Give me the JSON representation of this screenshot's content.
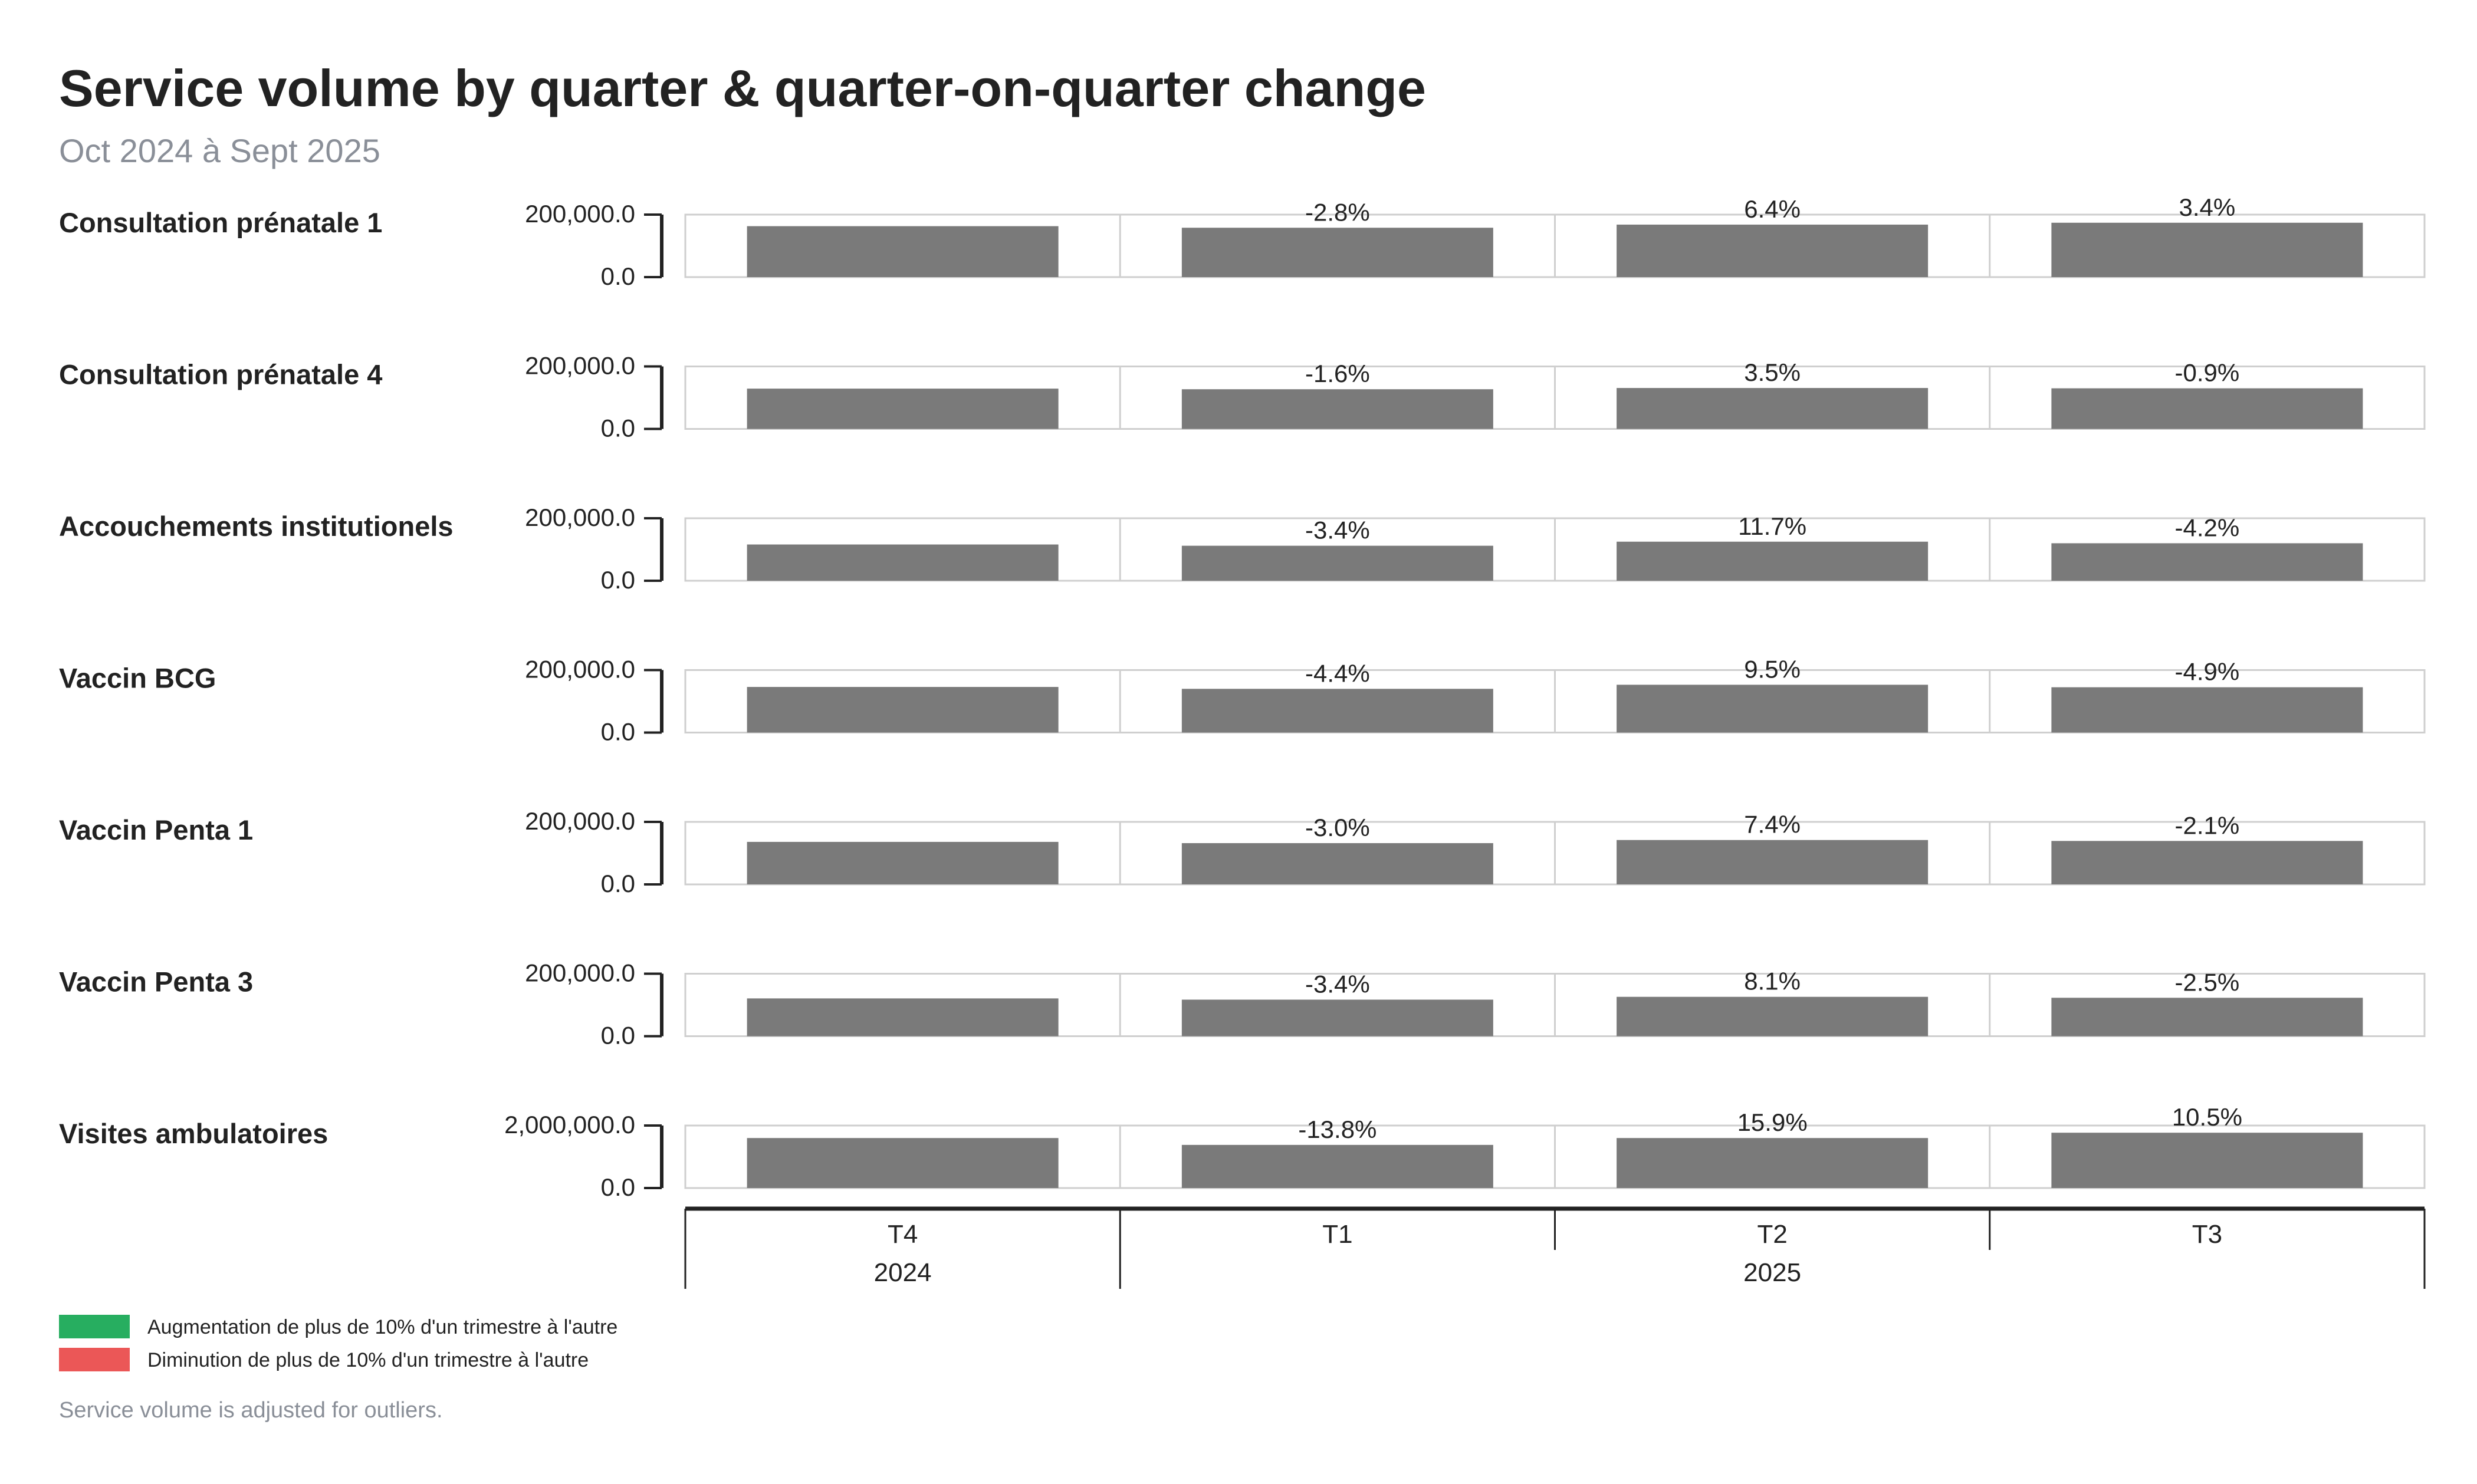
{
  "chart_data": {
    "type": "bar",
    "title": "Service volume by quarter & quarter-on-quarter change",
    "subtitle": "Oct 2024 à Sept 2025",
    "quarters": [
      {
        "label": "T4",
        "year": "2024"
      },
      {
        "label": "T1",
        "year": "2025"
      },
      {
        "label": "T2",
        "year": "2025"
      },
      {
        "label": "T3",
        "year": "2025"
      }
    ],
    "years": [
      {
        "label": "2024",
        "quarters": [
          "T4"
        ]
      },
      {
        "label": "2025",
        "quarters": [
          "T1",
          "T2",
          "T3"
        ]
      }
    ],
    "series": [
      {
        "name": "Consultation prénatale 1",
        "ylim": [
          0,
          200000
        ],
        "tick_labels": [
          "200,000.0",
          "0.0"
        ],
        "values": [
          163000,
          158000,
          168000,
          174000
        ],
        "changes": [
          "",
          "-2.8%",
          "6.4%",
          "3.4%"
        ]
      },
      {
        "name": "Consultation prénatale 4",
        "ylim": [
          0,
          200000
        ],
        "tick_labels": [
          "200,000.0",
          "0.0"
        ],
        "values": [
          129000,
          127000,
          131000,
          130000
        ],
        "changes": [
          "",
          "-1.6%",
          "3.5%",
          "-0.9%"
        ]
      },
      {
        "name": "Accouchements institutionels",
        "ylim": [
          0,
          200000
        ],
        "tick_labels": [
          "200,000.0",
          "0.0"
        ],
        "values": [
          116000,
          112000,
          125000,
          120000
        ],
        "changes": [
          "",
          "-3.4%",
          "11.7%",
          "-4.2%"
        ]
      },
      {
        "name": "Vaccin BCG",
        "ylim": [
          0,
          200000
        ],
        "tick_labels": [
          "200,000.0",
          "0.0"
        ],
        "values": [
          146000,
          140000,
          153000,
          145000
        ],
        "changes": [
          "",
          "-4.4%",
          "9.5%",
          "-4.9%"
        ]
      },
      {
        "name": "Vaccin Penta 1",
        "ylim": [
          0,
          200000
        ],
        "tick_labels": [
          "200,000.0",
          "0.0"
        ],
        "values": [
          136000,
          132000,
          142000,
          139000
        ],
        "changes": [
          "",
          "-3.0%",
          "7.4%",
          "-2.1%"
        ]
      },
      {
        "name": "Vaccin Penta 3",
        "ylim": [
          0,
          200000
        ],
        "tick_labels": [
          "200,000.0",
          "0.0"
        ],
        "values": [
          121000,
          117000,
          126000,
          123000
        ],
        "changes": [
          "",
          "-3.4%",
          "8.1%",
          "-2.5%"
        ]
      },
      {
        "name": "Visites ambulatoires",
        "ylim": [
          0,
          2000000
        ],
        "tick_labels": [
          "2,000,000.0",
          "0.0"
        ],
        "values": [
          1600000,
          1380000,
          1600000,
          1770000
        ],
        "changes": [
          "",
          "-13.8%",
          "15.9%",
          "10.5%"
        ]
      }
    ],
    "legend": [
      {
        "label": "Augmentation de plus de 10% d'un trimestre à l'autre",
        "color": "#27ae60"
      },
      {
        "label": "Diminution de plus de 10% d'un trimestre à l'autre",
        "color": "#eb5757"
      }
    ],
    "bar_color": "#7a7a7a",
    "footnote": "Service volume is adjusted for outliers."
  }
}
